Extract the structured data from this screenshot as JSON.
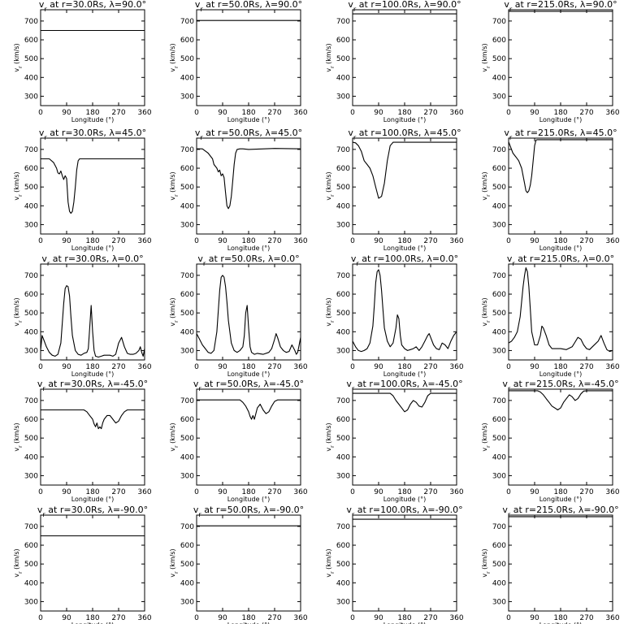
{
  "figure": {
    "xlabel": "Longitude (°)",
    "ylabel": "v",
    "ylabel_sub": "r",
    "ylabel_unit": " (km/s)"
  },
  "chart_data": [
    {
      "type": "line",
      "title": "v",
      "title_sub": "r",
      "title_rest": " at r=30.0Rs, λ=90.0°",
      "xlim": [
        0,
        360
      ],
      "ylim": [
        250,
        760
      ],
      "xticks": [
        0,
        90,
        180,
        270,
        360
      ],
      "yticks": [
        300,
        400,
        500,
        600,
        700
      ],
      "x": [
        0,
        360
      ],
      "y": [
        650,
        650
      ]
    },
    {
      "type": "line",
      "title": "v",
      "title_sub": "r",
      "title_rest": " at r=50.0Rs, λ=90.0°",
      "xlim": [
        0,
        360
      ],
      "ylim": [
        250,
        760
      ],
      "xticks": [
        0,
        90,
        180,
        270,
        360
      ],
      "yticks": [
        300,
        400,
        500,
        600,
        700
      ],
      "x": [
        0,
        360
      ],
      "y": [
        703,
        703
      ]
    },
    {
      "type": "line",
      "title": "v",
      "title_sub": "r",
      "title_rest": " at r=100.0Rs, λ=90.0°",
      "xlim": [
        0,
        360
      ],
      "ylim": [
        250,
        760
      ],
      "xticks": [
        0,
        90,
        180,
        270,
        360
      ],
      "yticks": [
        300,
        400,
        500,
        600,
        700
      ],
      "x": [
        0,
        360
      ],
      "y": [
        738,
        738
      ]
    },
    {
      "type": "line",
      "title": "v",
      "title_sub": "r",
      "title_rest": " at r=215.0Rs, λ=90.0°",
      "xlim": [
        0,
        360
      ],
      "ylim": [
        250,
        760
      ],
      "xticks": [
        0,
        90,
        180,
        270,
        360
      ],
      "yticks": [
        300,
        400,
        500,
        600,
        700
      ],
      "x": [
        0,
        360
      ],
      "y": [
        752,
        752
      ]
    },
    {
      "type": "line",
      "title": "v",
      "title_sub": "r",
      "title_rest": " at r=30.0Rs, λ=45.0°",
      "xlim": [
        0,
        360
      ],
      "ylim": [
        250,
        760
      ],
      "xticks": [
        0,
        90,
        180,
        270,
        360
      ],
      "yticks": [
        300,
        400,
        500,
        600,
        700
      ],
      "x": [
        0,
        30,
        45,
        55,
        60,
        65,
        70,
        75,
        80,
        85,
        90,
        95,
        100,
        105,
        110,
        115,
        120,
        125,
        130,
        135,
        140,
        150,
        160,
        360
      ],
      "y": [
        650,
        650,
        630,
        600,
        575,
        570,
        585,
        560,
        540,
        560,
        545,
        420,
        370,
        360,
        370,
        420,
        500,
        590,
        640,
        650,
        650,
        650,
        650,
        650
      ]
    },
    {
      "type": "line",
      "title": "v",
      "title_sub": "r",
      "title_rest": " at r=50.0Rs, λ=45.0°",
      "xlim": [
        0,
        360
      ],
      "ylim": [
        250,
        760
      ],
      "xticks": [
        0,
        90,
        180,
        270,
        360
      ],
      "yticks": [
        300,
        400,
        500,
        600,
        700
      ],
      "x": [
        0,
        20,
        40,
        55,
        60,
        70,
        75,
        80,
        85,
        90,
        95,
        100,
        105,
        110,
        115,
        120,
        125,
        130,
        135,
        140,
        150,
        160,
        180,
        270,
        360
      ],
      "y": [
        703,
        703,
        680,
        650,
        620,
        600,
        580,
        590,
        560,
        570,
        550,
        470,
        400,
        385,
        400,
        450,
        530,
        620,
        680,
        700,
        703,
        703,
        700,
        705,
        703
      ]
    },
    {
      "type": "line",
      "title": "v",
      "title_sub": "r",
      "title_rest": " at r=100.0Rs, λ=45.0°",
      "xlim": [
        0,
        360
      ],
      "ylim": [
        250,
        760
      ],
      "xticks": [
        0,
        90,
        180,
        270,
        360
      ],
      "yticks": [
        300,
        400,
        500,
        600,
        700
      ],
      "x": [
        0,
        10,
        20,
        30,
        40,
        50,
        60,
        70,
        80,
        90,
        100,
        110,
        120,
        130,
        140,
        150,
        360
      ],
      "y": [
        738,
        735,
        720,
        690,
        640,
        620,
        600,
        560,
        500,
        440,
        450,
        520,
        640,
        720,
        738,
        738,
        738
      ]
    },
    {
      "type": "line",
      "title": "v",
      "title_sub": "r",
      "title_rest": " at r=215.0Rs, λ=45.0°",
      "xlim": [
        0,
        360
      ],
      "ylim": [
        250,
        760
      ],
      "xticks": [
        0,
        90,
        180,
        270,
        360
      ],
      "yticks": [
        300,
        400,
        500,
        600,
        700
      ],
      "x": [
        0,
        5,
        15,
        25,
        35,
        45,
        55,
        60,
        65,
        70,
        75,
        80,
        85,
        90,
        95,
        100,
        110,
        360
      ],
      "y": [
        740,
        720,
        680,
        660,
        640,
        600,
        520,
        480,
        470,
        480,
        510,
        560,
        640,
        720,
        750,
        752,
        752,
        752
      ]
    },
    {
      "type": "line",
      "title": "v",
      "title_sub": "r",
      "title_rest": " at r=30.0Rs, λ=0.0°",
      "xlim": [
        0,
        360
      ],
      "ylim": [
        250,
        760
      ],
      "xticks": [
        0,
        90,
        180,
        270,
        360
      ],
      "yticks": [
        300,
        400,
        500,
        600,
        700
      ],
      "x": [
        0,
        5,
        10,
        20,
        30,
        40,
        50,
        60,
        70,
        80,
        85,
        90,
        95,
        100,
        105,
        110,
        120,
        130,
        140,
        150,
        160,
        165,
        170,
        175,
        180,
        185,
        190,
        200,
        210,
        220,
        240,
        250,
        260,
        270,
        280,
        290,
        300,
        310,
        320,
        330,
        340,
        345,
        350,
        355,
        360
      ],
      "y": [
        300,
        380,
        360,
        320,
        290,
        275,
        270,
        280,
        340,
        550,
        630,
        645,
        640,
        590,
        480,
        380,
        300,
        280,
        275,
        285,
        290,
        310,
        420,
        540,
        400,
        300,
        270,
        265,
        270,
        275,
        275,
        270,
        280,
        340,
        370,
        320,
        285,
        280,
        280,
        285,
        300,
        320,
        290,
        270,
        310
      ]
    },
    {
      "type": "line",
      "title": "v",
      "title_sub": "r",
      "title_rest": " at r=50.0Rs, λ=0.0°",
      "xlim": [
        0,
        360
      ],
      "ylim": [
        250,
        760
      ],
      "xticks": [
        0,
        90,
        180,
        270,
        360
      ],
      "yticks": [
        300,
        400,
        500,
        600,
        700
      ],
      "x": [
        0,
        10,
        20,
        30,
        40,
        50,
        60,
        70,
        80,
        85,
        90,
        95,
        100,
        105,
        110,
        120,
        130,
        140,
        150,
        160,
        165,
        170,
        175,
        180,
        185,
        190,
        200,
        210,
        230,
        250,
        260,
        270,
        275,
        280,
        290,
        300,
        310,
        320,
        330,
        340,
        345,
        350,
        360
      ],
      "y": [
        390,
        360,
        330,
        310,
        290,
        285,
        300,
        400,
        620,
        690,
        700,
        690,
        640,
        560,
        460,
        340,
        300,
        290,
        300,
        320,
        380,
        500,
        540,
        420,
        320,
        290,
        280,
        285,
        280,
        290,
        310,
        360,
        390,
        370,
        320,
        300,
        290,
        295,
        330,
        300,
        280,
        290,
        370
      ]
    },
    {
      "type": "line",
      "title": "v",
      "title_sub": "r",
      "title_rest": " at r=100.0Rs, λ=0.0°",
      "xlim": [
        0,
        360
      ],
      "ylim": [
        250,
        760
      ],
      "xticks": [
        0,
        90,
        180,
        270,
        360
      ],
      "yticks": [
        300,
        400,
        500,
        600,
        700
      ],
      "x": [
        0,
        10,
        20,
        30,
        40,
        50,
        60,
        70,
        75,
        80,
        85,
        90,
        95,
        100,
        105,
        110,
        120,
        130,
        140,
        150,
        155,
        160,
        165,
        170,
        180,
        190,
        200,
        210,
        220,
        230,
        240,
        250,
        260,
        265,
        270,
        280,
        290,
        300,
        310,
        320,
        330,
        340,
        350,
        360
      ],
      "y": [
        350,
        320,
        300,
        295,
        300,
        310,
        340,
        430,
        540,
        660,
        720,
        730,
        700,
        620,
        520,
        420,
        350,
        320,
        340,
        420,
        490,
        470,
        380,
        330,
        310,
        300,
        305,
        310,
        320,
        300,
        320,
        350,
        380,
        390,
        370,
        330,
        310,
        305,
        340,
        330,
        310,
        350,
        380,
        400
      ]
    },
    {
      "type": "line",
      "title": "v",
      "title_sub": "r",
      "title_rest": " at r=215.0Rs, λ=0.0°",
      "xlim": [
        0,
        360
      ],
      "ylim": [
        250,
        760
      ],
      "xticks": [
        0,
        90,
        180,
        270,
        360
      ],
      "yticks": [
        300,
        400,
        500,
        600,
        700
      ],
      "x": [
        0,
        10,
        20,
        30,
        40,
        45,
        50,
        55,
        60,
        65,
        70,
        75,
        80,
        90,
        100,
        110,
        115,
        120,
        130,
        140,
        150,
        160,
        180,
        200,
        220,
        230,
        240,
        250,
        260,
        270,
        280,
        290,
        300,
        310,
        320,
        330,
        340,
        350,
        360
      ],
      "y": [
        340,
        350,
        370,
        400,
        480,
        560,
        640,
        700,
        740,
        720,
        640,
        520,
        400,
        330,
        330,
        380,
        430,
        420,
        380,
        330,
        310,
        310,
        310,
        305,
        320,
        345,
        370,
        360,
        330,
        310,
        305,
        320,
        335,
        350,
        380,
        340,
        305,
        295,
        300
      ]
    },
    {
      "type": "line",
      "title": "v",
      "title_sub": "r",
      "title_rest": " at r=30.0Rs, λ=-45.0°",
      "xlim": [
        0,
        360
      ],
      "ylim": [
        250,
        760
      ],
      "xticks": [
        0,
        90,
        180,
        270,
        360
      ],
      "yticks": [
        300,
        400,
        500,
        600,
        700
      ],
      "x": [
        0,
        150,
        160,
        170,
        180,
        185,
        190,
        195,
        200,
        205,
        210,
        215,
        220,
        230,
        240,
        250,
        260,
        270,
        280,
        290,
        300,
        310,
        360
      ],
      "y": [
        650,
        650,
        640,
        620,
        600,
        575,
        560,
        580,
        550,
        560,
        550,
        580,
        600,
        620,
        620,
        600,
        580,
        590,
        620,
        640,
        650,
        650,
        650
      ]
    },
    {
      "type": "line",
      "title": "v",
      "title_sub": "r",
      "title_rest": " at r=50.0Rs, λ=-45.0°",
      "xlim": [
        0,
        360
      ],
      "ylim": [
        250,
        760
      ],
      "xticks": [
        0,
        90,
        180,
        270,
        360
      ],
      "yticks": [
        300,
        400,
        500,
        600,
        700
      ],
      "x": [
        0,
        150,
        160,
        170,
        180,
        185,
        190,
        195,
        200,
        205,
        210,
        220,
        230,
        240,
        250,
        260,
        270,
        280,
        290,
        360
      ],
      "y": [
        703,
        703,
        690,
        670,
        640,
        615,
        600,
        620,
        600,
        630,
        660,
        680,
        650,
        630,
        640,
        670,
        695,
        703,
        703,
        703
      ]
    },
    {
      "type": "line",
      "title": "v",
      "title_sub": "r",
      "title_rest": " at r=100.0Rs, λ=-45.0°",
      "xlim": [
        0,
        360
      ],
      "ylim": [
        250,
        760
      ],
      "xticks": [
        0,
        90,
        180,
        270,
        360
      ],
      "yticks": [
        300,
        400,
        500,
        600,
        700
      ],
      "x": [
        0,
        130,
        140,
        150,
        160,
        170,
        180,
        190,
        200,
        210,
        220,
        230,
        240,
        250,
        260,
        270,
        280,
        290,
        360
      ],
      "y": [
        738,
        738,
        725,
        700,
        680,
        660,
        640,
        650,
        680,
        700,
        690,
        670,
        665,
        690,
        725,
        738,
        738,
        738,
        738
      ]
    },
    {
      "type": "line",
      "title": "v",
      "title_sub": "r",
      "title_rest": " at r=215.0Rs, λ=-45.0°",
      "xlim": [
        0,
        360
      ],
      "ylim": [
        250,
        760
      ],
      "xticks": [
        0,
        90,
        180,
        270,
        360
      ],
      "yticks": [
        300,
        400,
        500,
        600,
        700
      ],
      "x": [
        0,
        100,
        110,
        120,
        130,
        140,
        150,
        160,
        170,
        180,
        190,
        200,
        210,
        220,
        230,
        240,
        250,
        260,
        270,
        280,
        360
      ],
      "y": [
        752,
        752,
        745,
        730,
        710,
        690,
        670,
        660,
        650,
        660,
        690,
        710,
        730,
        720,
        700,
        710,
        735,
        750,
        752,
        752,
        752
      ]
    },
    {
      "type": "line",
      "title": "v",
      "title_sub": "r",
      "title_rest": " at r=30.0Rs, λ=-90.0°",
      "xlim": [
        0,
        360
      ],
      "ylim": [
        250,
        760
      ],
      "xticks": [
        0,
        90,
        180,
        270,
        360
      ],
      "yticks": [
        300,
        400,
        500,
        600,
        700
      ],
      "x": [
        0,
        360
      ],
      "y": [
        650,
        650
      ]
    },
    {
      "type": "line",
      "title": "v",
      "title_sub": "r",
      "title_rest": " at r=50.0Rs, λ=-90.0°",
      "xlim": [
        0,
        360
      ],
      "ylim": [
        250,
        760
      ],
      "xticks": [
        0,
        90,
        180,
        270,
        360
      ],
      "yticks": [
        300,
        400,
        500,
        600,
        700
      ],
      "x": [
        0,
        360
      ],
      "y": [
        703,
        703
      ]
    },
    {
      "type": "line",
      "title": "v",
      "title_sub": "r",
      "title_rest": " at r=100.0Rs, λ=-90.0°",
      "xlim": [
        0,
        360
      ],
      "ylim": [
        250,
        760
      ],
      "xticks": [
        0,
        90,
        180,
        270,
        360
      ],
      "yticks": [
        300,
        400,
        500,
        600,
        700
      ],
      "x": [
        0,
        360
      ],
      "y": [
        738,
        738
      ]
    },
    {
      "type": "line",
      "title": "v",
      "title_sub": "r",
      "title_rest": " at r=215.0Rs, λ=-90.0°",
      "xlim": [
        0,
        360
      ],
      "ylim": [
        250,
        760
      ],
      "xticks": [
        0,
        90,
        180,
        270,
        360
      ],
      "yticks": [
        300,
        400,
        500,
        600,
        700
      ],
      "x": [
        0,
        360
      ],
      "y": [
        752,
        752
      ]
    }
  ]
}
